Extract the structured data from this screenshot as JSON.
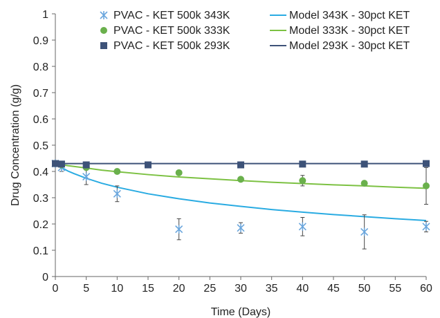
{
  "chart_data": {
    "type": "scatter",
    "title": "",
    "xlabel": "Time (Days)",
    "ylabel": "Drug Concentration (g/g)",
    "xlim": [
      0,
      60
    ],
    "ylim": [
      0,
      1
    ],
    "x_ticks": [
      0,
      5,
      10,
      15,
      20,
      25,
      30,
      35,
      40,
      45,
      50,
      55,
      60
    ],
    "y_ticks": [
      0,
      0.1,
      0.2,
      0.3,
      0.4,
      0.5,
      0.6,
      0.7,
      0.8,
      0.9,
      1
    ],
    "grid": false,
    "legend_position": "top-right",
    "series": [
      {
        "name": "PVAC - KET 500k 343K",
        "kind": "scatter",
        "marker": "star",
        "color": "#6aa6dd",
        "x": [
          0,
          1,
          5,
          10,
          20,
          30,
          40,
          50,
          60
        ],
        "y": [
          0.43,
          0.415,
          0.38,
          0.315,
          0.18,
          0.185,
          0.19,
          0.17,
          0.19
        ],
        "error": [
          0.0,
          0.015,
          0.03,
          0.03,
          0.04,
          0.02,
          0.035,
          0.065,
          0.02
        ]
      },
      {
        "name": "PVAC - KET 500k 333K",
        "kind": "scatter",
        "marker": "circle",
        "color": "#6ab04c",
        "x": [
          0,
          1,
          5,
          10,
          20,
          30,
          40,
          50,
          60
        ],
        "y": [
          0.43,
          0.425,
          0.415,
          0.4,
          0.395,
          0.37,
          0.365,
          0.355,
          0.345
        ],
        "error": [
          0.0,
          0.0,
          0.0,
          0.0,
          0.0,
          0.0,
          0.02,
          0.0,
          0.07
        ]
      },
      {
        "name": "PVAC - KET 500k 293K",
        "kind": "scatter",
        "marker": "square",
        "color": "#3d5278",
        "x": [
          0,
          1,
          5,
          15,
          30,
          40,
          50,
          60
        ],
        "y": [
          0.43,
          0.428,
          0.425,
          0.425,
          0.425,
          0.428,
          0.428,
          0.43
        ],
        "error": [
          0,
          0,
          0,
          0,
          0,
          0,
          0,
          0
        ]
      },
      {
        "name": "Model 343K - 30pct KET",
        "kind": "line",
        "color": "#29abe2",
        "x": [
          0,
          1,
          2,
          3,
          5,
          7.5,
          10,
          15,
          20,
          25,
          30,
          35,
          40,
          45,
          50,
          55,
          60
        ],
        "y": [
          0.43,
          0.415,
          0.402,
          0.392,
          0.374,
          0.355,
          0.34,
          0.315,
          0.296,
          0.28,
          0.267,
          0.255,
          0.245,
          0.236,
          0.228,
          0.22,
          0.213
        ]
      },
      {
        "name": "Model 333K - 30pct KET",
        "kind": "line",
        "color": "#7cc142",
        "x": [
          0,
          1,
          2,
          3,
          5,
          7.5,
          10,
          15,
          20,
          25,
          30,
          35,
          40,
          45,
          50,
          55,
          60
        ],
        "y": [
          0.43,
          0.426,
          0.422,
          0.419,
          0.413,
          0.405,
          0.399,
          0.388,
          0.379,
          0.372,
          0.365,
          0.359,
          0.354,
          0.349,
          0.345,
          0.34,
          0.336
        ]
      },
      {
        "name": "Model 293K - 30pct KET",
        "kind": "line",
        "color": "#3d5278",
        "x": [
          0,
          60
        ],
        "y": [
          0.43,
          0.43
        ]
      }
    ]
  }
}
